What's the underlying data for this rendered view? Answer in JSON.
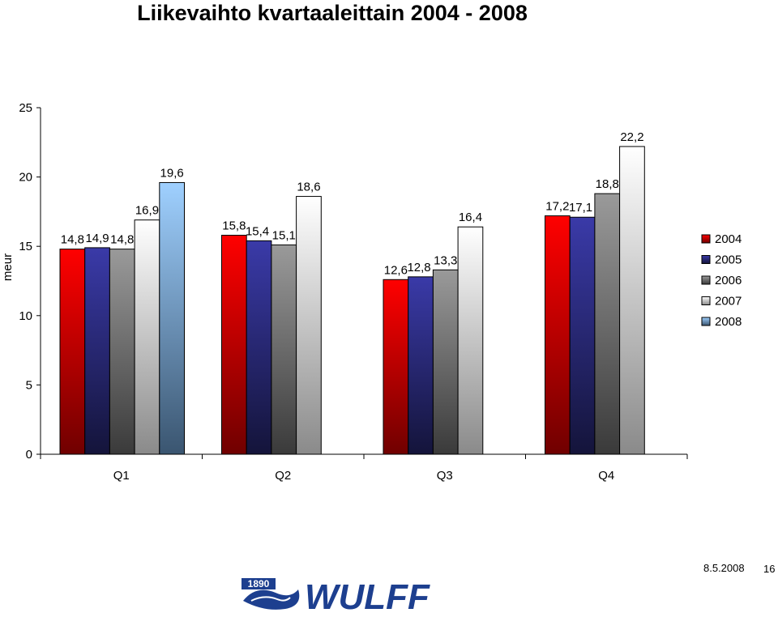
{
  "title": "Liikevaihto kvartaaleittain 2004 - 2008",
  "footer": {
    "date": "8.5.2008",
    "page": "16"
  },
  "logo": {
    "text": "WULFF",
    "year": "1890"
  },
  "chart_data": {
    "type": "bar",
    "title": "Liikevaihto kvartaaleittain 2004 - 2008",
    "ylabel": "meur",
    "xlabel": "",
    "ylim": [
      0,
      25
    ],
    "yticks": [
      0,
      5,
      10,
      15,
      20,
      25
    ],
    "grid": false,
    "legend_position": "right",
    "categories": [
      "Q1",
      "Q2",
      "Q3",
      "Q4"
    ],
    "series": [
      {
        "name": "2004",
        "color": "#e00000",
        "values": [
          14.8,
          15.8,
          12.6,
          17.2
        ],
        "labels": [
          "14,8",
          "15,8",
          "12,6",
          "17,2"
        ]
      },
      {
        "name": "2005",
        "color": "#2e2e9a",
        "values": [
          14.9,
          15.4,
          12.8,
          17.1
        ],
        "labels": [
          "14,9",
          "15,4",
          "12,8",
          "17,1"
        ]
      },
      {
        "name": "2006",
        "color": "#808080",
        "values": [
          14.8,
          15.1,
          13.3,
          18.8
        ],
        "labels": [
          "14,8",
          "15,1",
          "13,3",
          "18,8"
        ]
      },
      {
        "name": "2007",
        "color": "#ffffff",
        "values": [
          16.9,
          18.6,
          16.4,
          22.2
        ],
        "labels": [
          "16,9",
          "18,6",
          "16,4",
          "22,2"
        ]
      },
      {
        "name": "2008",
        "color": "#8fc3f5",
        "values": [
          19.6,
          null,
          null,
          null
        ],
        "labels": [
          "19,6",
          "",
          "",
          ""
        ]
      }
    ]
  }
}
